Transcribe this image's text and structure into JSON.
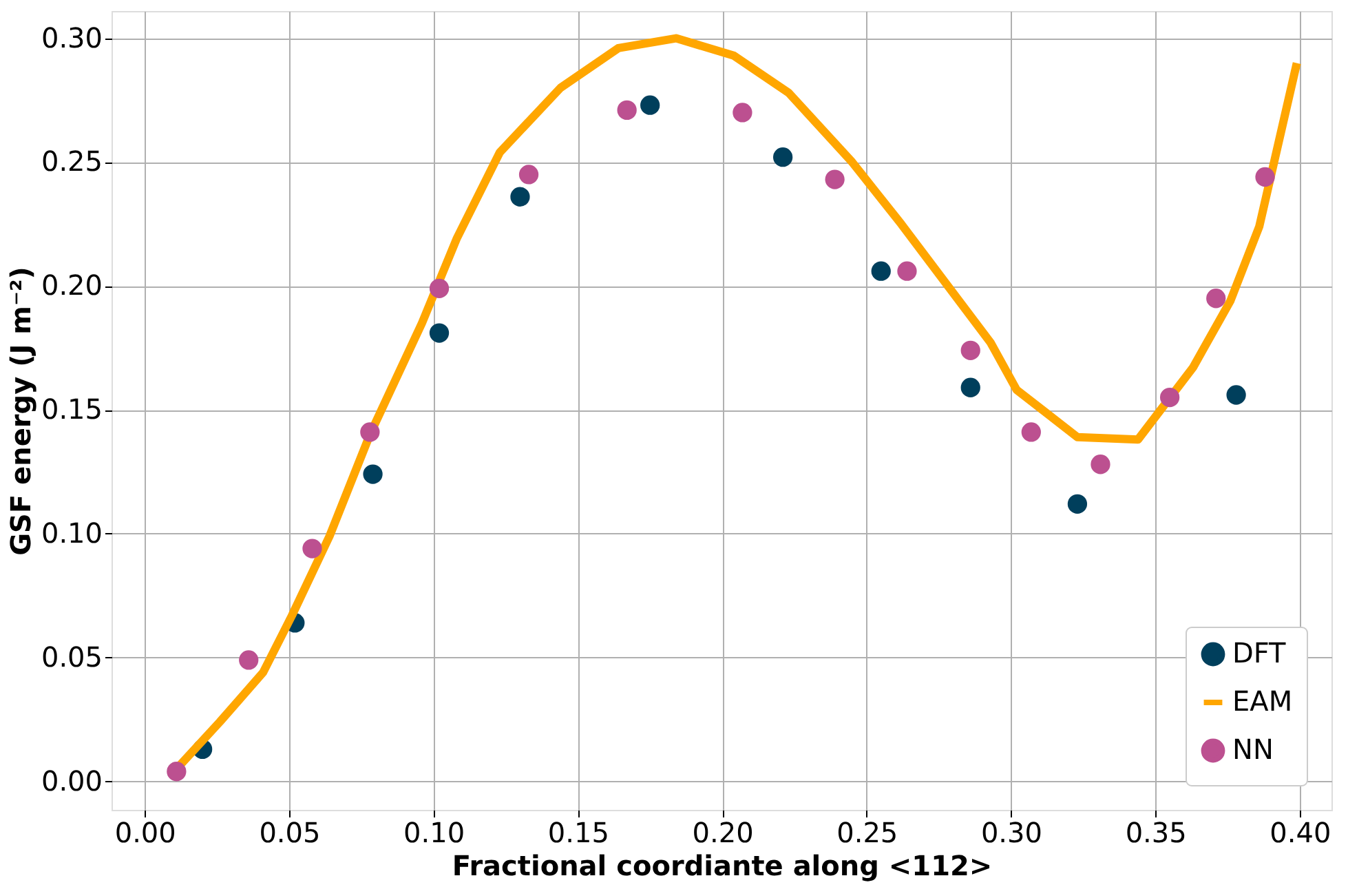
{
  "chart_data": {
    "type": "scatter",
    "xlabel": "Fractional coordiante along <112>",
    "ylabel": "GSF energy (J m⁻²)",
    "xlim": [
      -0.0115,
      0.411
    ],
    "ylim": [
      -0.0115,
      0.311
    ],
    "xticks": [
      {
        "value": 0,
        "label": "0.00"
      },
      {
        "value": 0.05,
        "label": "0.05"
      },
      {
        "value": 0.1,
        "label": "0.10"
      },
      {
        "value": 0.15,
        "label": "0.15"
      },
      {
        "value": 0.2,
        "label": "0.20"
      },
      {
        "value": 0.25,
        "label": "0.25"
      },
      {
        "value": 0.3,
        "label": "0.30"
      },
      {
        "value": 0.35,
        "label": "0.35"
      },
      {
        "value": 0.4,
        "label": "0.40"
      }
    ],
    "yticks": [
      {
        "value": 0,
        "label": "0.00"
      },
      {
        "value": 0.05,
        "label": "0.05"
      },
      {
        "value": 0.1,
        "label": "0.10"
      },
      {
        "value": 0.15,
        "label": "0.15"
      },
      {
        "value": 0.2,
        "label": "0.20"
      },
      {
        "value": 0.25,
        "label": "0.25"
      },
      {
        "value": 0.3,
        "label": "0.30"
      }
    ],
    "grid": true,
    "legend": "bottom right",
    "series": [
      {
        "name": "DFT",
        "marker": "circle",
        "color": "#003f5c",
        "x": [
          0.02,
          0.052,
          0.079,
          0.102,
          0.13,
          0.175,
          0.221,
          0.255,
          0.286,
          0.323,
          0.378
        ],
        "values": [
          0.013,
          0.064,
          0.124,
          0.181,
          0.236,
          0.273,
          0.252,
          0.206,
          0.159,
          0.112,
          0.156
        ]
      },
      {
        "name": "EAM",
        "type": "line",
        "color": "#ffa600",
        "line_style": "solid",
        "x": [
          0.011,
          0.026,
          0.041,
          0.051,
          0.064,
          0.078,
          0.096,
          0.108,
          0.123,
          0.144,
          0.164,
          0.184,
          0.204,
          0.223,
          0.245,
          0.262,
          0.293,
          0.302,
          0.323,
          0.344,
          0.363,
          0.376,
          0.386,
          0.399
        ],
        "values": [
          0.005,
          0.024,
          0.044,
          0.067,
          0.099,
          0.14,
          0.185,
          0.219,
          0.254,
          0.28,
          0.296,
          0.3,
          0.293,
          0.278,
          0.25,
          0.225,
          0.177,
          0.158,
          0.139,
          0.138,
          0.167,
          0.194,
          0.224,
          0.29
        ]
      },
      {
        "name": "NN",
        "marker": "circle",
        "color": "#bc5090",
        "x": [
          0.011,
          0.036,
          0.058,
          0.078,
          0.102,
          0.133,
          0.167,
          0.207,
          0.239,
          0.264,
          0.286,
          0.307,
          0.331,
          0.355,
          0.371,
          0.388
        ],
        "values": [
          0.004,
          0.049,
          0.094,
          0.141,
          0.199,
          0.245,
          0.271,
          0.27,
          0.243,
          0.206,
          0.174,
          0.141,
          0.128,
          0.155,
          0.195,
          0.244
        ]
      }
    ]
  }
}
